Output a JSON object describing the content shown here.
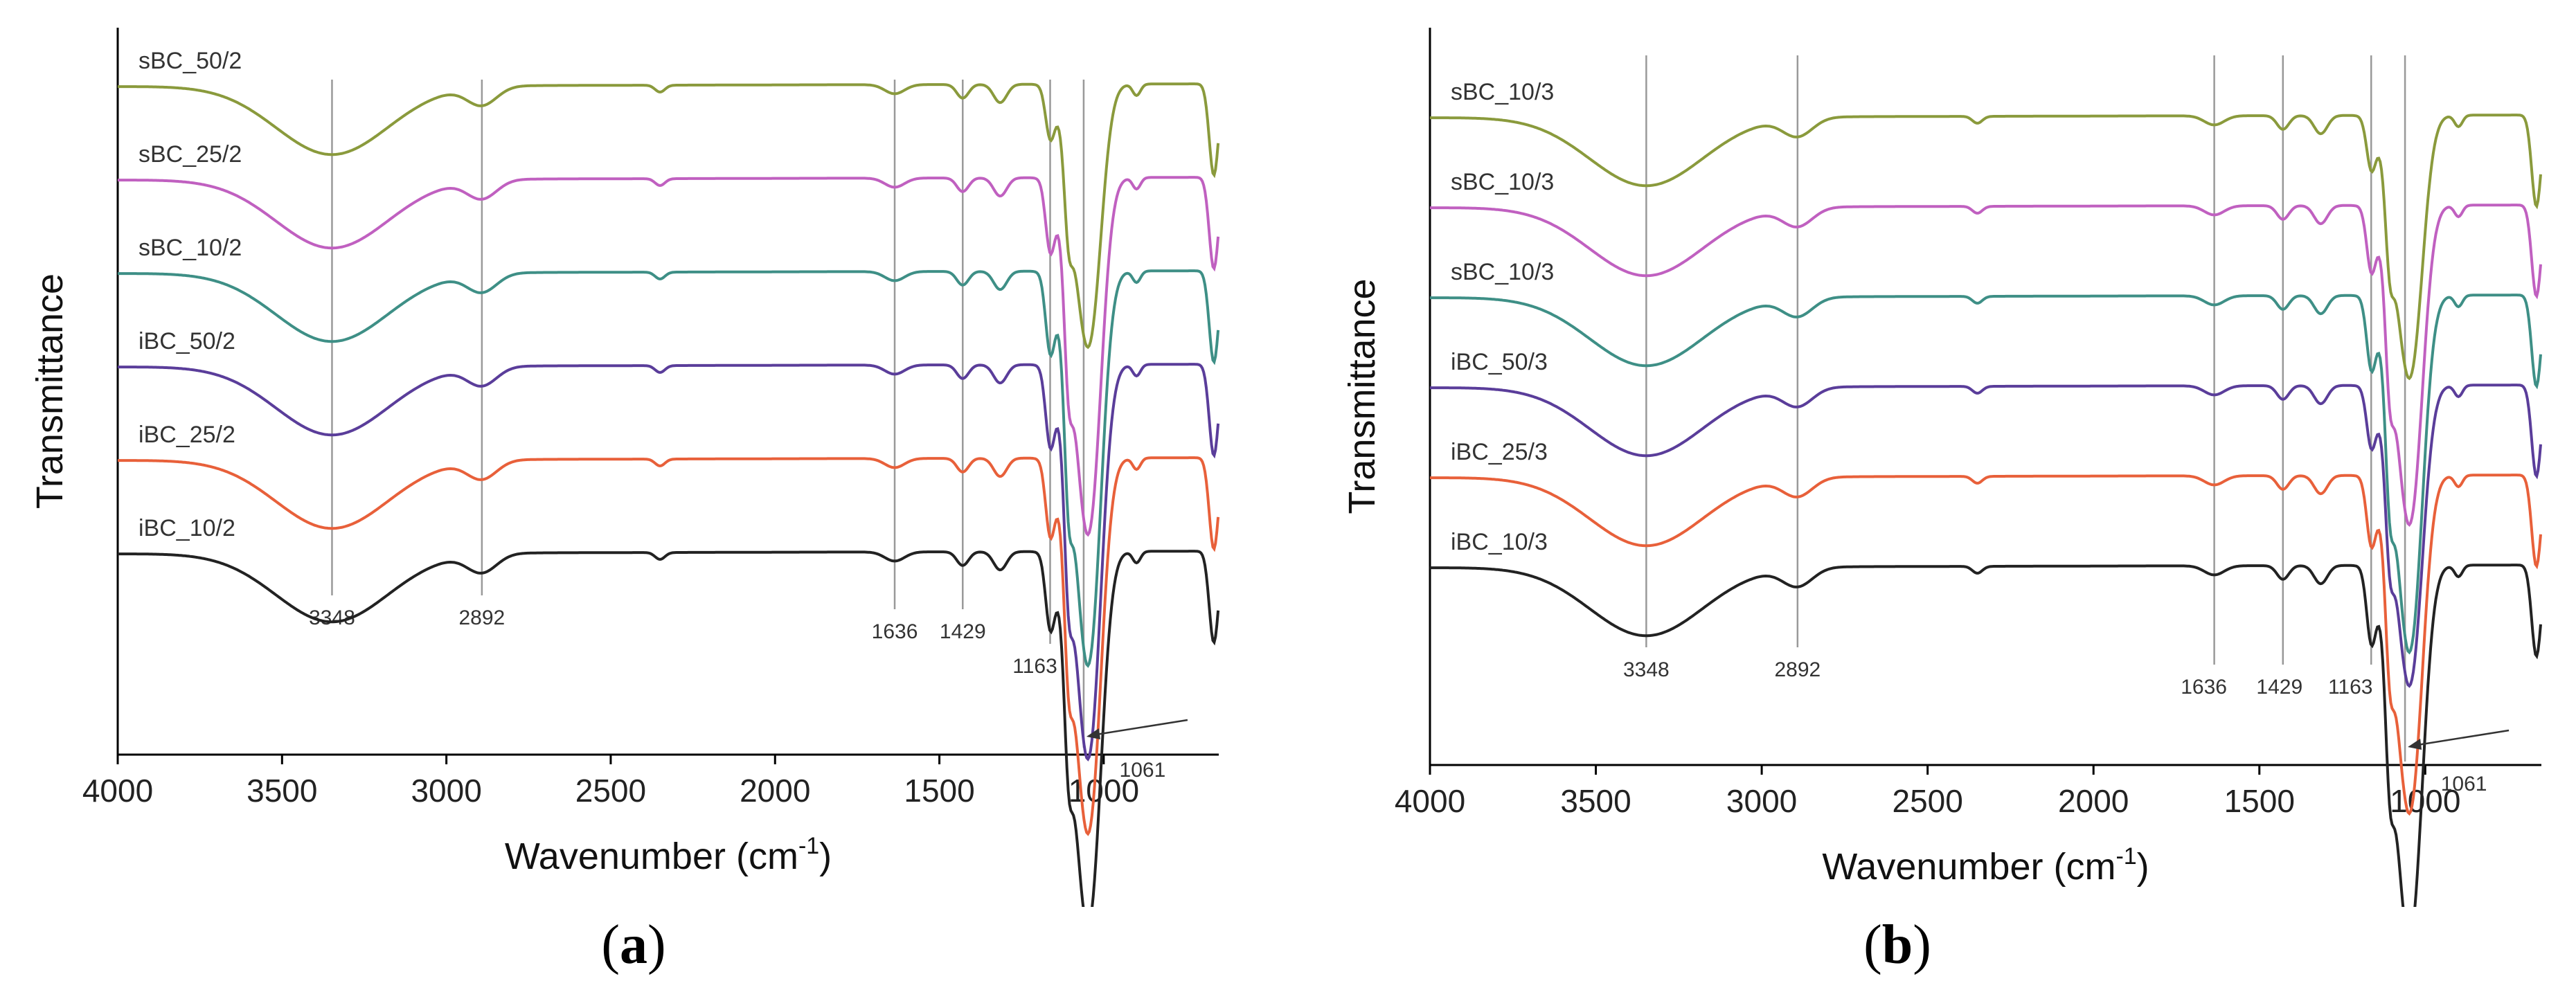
{
  "chart_data": [
    {
      "panel_label": "a",
      "type": "line",
      "xlabel": "Wavenumber",
      "xlabel_unit": "(cm",
      "xlabel_sup": "-1",
      "xlabel_close": ")",
      "ylabel": "Transmittance",
      "xlim": [
        4000,
        650
      ],
      "xticks": [
        4000,
        3500,
        3000,
        2500,
        2000,
        1500,
        1000
      ],
      "peaks": [
        {
          "wn": 3348,
          "label": "3348"
        },
        {
          "wn": 2892,
          "label": "2892"
        },
        {
          "wn": 1636,
          "label": "1636"
        },
        {
          "wn": 1429,
          "label": "1429"
        },
        {
          "wn": 1163,
          "label": "1163"
        },
        {
          "wn": 1061,
          "label": "1061"
        }
      ],
      "series": [
        {
          "name": "sBC_50/2",
          "color": "#8a9a3c",
          "offset": 5.0,
          "depth": 0.7
        },
        {
          "name": "sBC_25/2",
          "color": "#c060c0",
          "offset": 4.0,
          "depth": 0.95
        },
        {
          "name": "sBC_10/2",
          "color": "#3e8f86",
          "offset": 3.0,
          "depth": 1.05
        },
        {
          "name": "iBC_50/2",
          "color": "#5a3d9a",
          "offset": 2.0,
          "depth": 1.05
        },
        {
          "name": "iBC_25/2",
          "color": "#e8603a",
          "offset": 1.0,
          "depth": 1.0
        },
        {
          "name": "iBC_10/2",
          "color": "#222222",
          "offset": 0.0,
          "depth": 1.0
        }
      ]
    },
    {
      "panel_label": "b",
      "type": "line",
      "xlabel": "Wavenumber",
      "xlabel_unit": "(cm",
      "xlabel_sup": "-1",
      "xlabel_close": ")",
      "ylabel": "Transmittance",
      "xlim": [
        4000,
        650
      ],
      "xticks": [
        4000,
        3500,
        3000,
        2500,
        2000,
        1500,
        1000
      ],
      "peaks": [
        {
          "wn": 3348,
          "label": "3348"
        },
        {
          "wn": 2892,
          "label": "2892"
        },
        {
          "wn": 1636,
          "label": "1636"
        },
        {
          "wn": 1429,
          "label": "1429"
        },
        {
          "wn": 1163,
          "label": "1163"
        },
        {
          "wn": 1061,
          "label": "1061"
        }
      ],
      "series": [
        {
          "name": "sBC_10/3",
          "color": "#8a9a3c",
          "offset": 5.0,
          "depth": 0.7
        },
        {
          "name": "sBC_10/3",
          "color": "#c060c0",
          "offset": 4.0,
          "depth": 0.85
        },
        {
          "name": "sBC_10/3",
          "color": "#3e8f86",
          "offset": 3.0,
          "depth": 0.95
        },
        {
          "name": "iBC_50/3",
          "color": "#5a3d9a",
          "offset": 2.0,
          "depth": 0.8
        },
        {
          "name": "iBC_25/3",
          "color": "#e8603a",
          "offset": 1.0,
          "depth": 0.9
        },
        {
          "name": "iBC_10/3",
          "color": "#222222",
          "offset": 0.0,
          "depth": 1.0
        }
      ]
    }
  ]
}
